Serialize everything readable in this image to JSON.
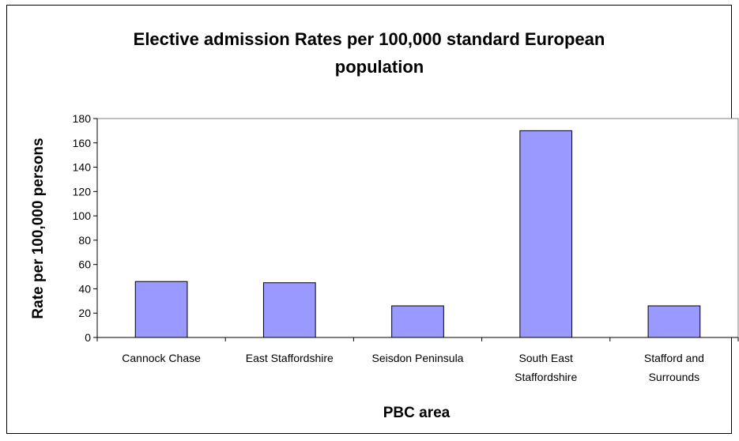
{
  "chart_data": {
    "type": "bar",
    "title_lines": [
      "Elective admission Rates per 100,000 standard European",
      "population"
    ],
    "xlabel": "PBC area",
    "ylabel": "Rate per 100,000 persons",
    "categories": [
      "Cannock Chase",
      "East Staffordshire",
      "Seisdon Peninsula",
      "South East Staffordshire",
      "Stafford and Surrounds"
    ],
    "category_label_lines": [
      [
        "Cannock Chase"
      ],
      [
        "East Staffordshire"
      ],
      [
        "Seisdon Peninsula"
      ],
      [
        "South East",
        "Staffordshire"
      ],
      [
        "Stafford and",
        "Surrounds"
      ]
    ],
    "values": [
      46,
      45,
      26,
      170,
      26
    ],
    "ylim": [
      0,
      180
    ],
    "yticks": [
      0,
      20,
      40,
      60,
      80,
      100,
      120,
      140,
      160,
      180
    ],
    "grid": false,
    "legend": "none",
    "colors": {
      "bar_fill": "#9999FF",
      "bar_stroke": "#000000",
      "axis": "#000000",
      "plot_border": "#808080"
    }
  }
}
